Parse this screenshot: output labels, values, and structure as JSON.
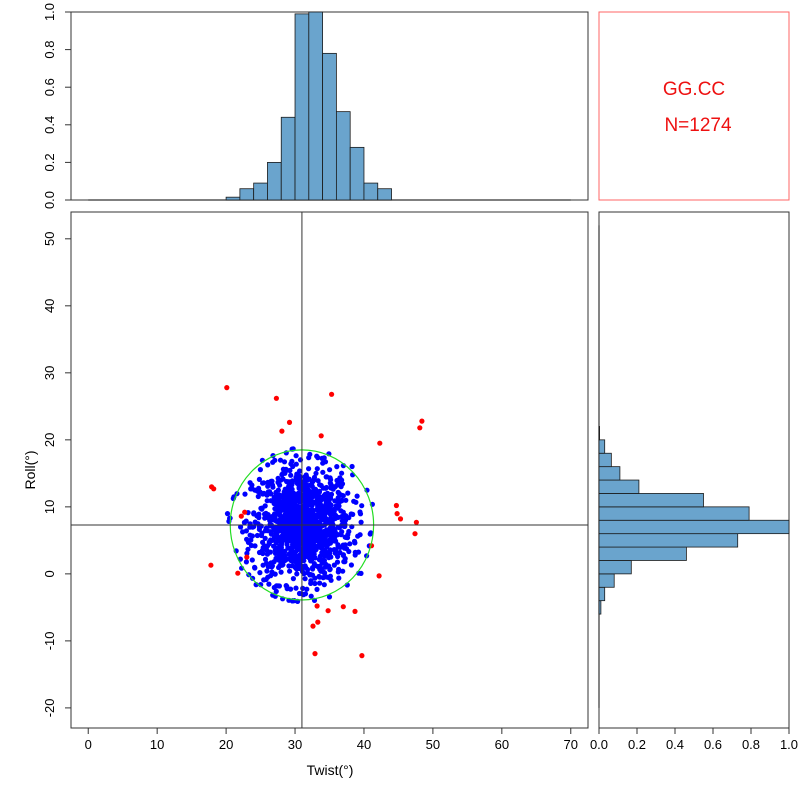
{
  "colors": {
    "bar_fill": "#6aa4cd",
    "bar_stroke": "#1a1a1a",
    "inlier_points": "#0000ff",
    "outlier_points": "#ff0000",
    "ellipse": "#22dd22",
    "info_box_border": "#ff6666",
    "info_text": "#ee1111",
    "mean_lines": "#333333"
  },
  "info_box": {
    "title": "GG.CC",
    "count_label": "N=1274"
  },
  "chart_data": [
    {
      "id": "scatter",
      "type": "scatter",
      "xlabel": "Twist(°)",
      "ylabel": "Roll(°)",
      "xlim": [
        -2.5,
        72.5
      ],
      "ylim": [
        -23,
        54
      ],
      "xticks": [
        0,
        10,
        20,
        30,
        40,
        50,
        60,
        70
      ],
      "yticks": [
        -20,
        -10,
        0,
        10,
        20,
        30,
        40,
        50
      ],
      "mean_x": 31,
      "mean_y": 7.3,
      "ellipse": {
        "cx": 31,
        "cy": 7.3,
        "rx": 10.4,
        "ry": 11.2
      },
      "series": [
        {
          "name": "inliers",
          "color_key": "inlier_points",
          "n": 1274,
          "center": [
            31,
            7.3
          ],
          "sd": [
            3.6,
            4.3
          ]
        },
        {
          "name": "outliers",
          "color_key": "outlier_points",
          "points": [
            [
              20.1,
              27.8
            ],
            [
              27.3,
              26.2
            ],
            [
              35.3,
              26.8
            ],
            [
              29.2,
              22.6
            ],
            [
              28.1,
              21.3
            ],
            [
              48.4,
              22.8
            ],
            [
              48.1,
              21.8
            ],
            [
              42.3,
              19.5
            ],
            [
              33.8,
              20.6
            ],
            [
              17.9,
              13.0
            ],
            [
              18.2,
              12.7
            ],
            [
              44.7,
              10.2
            ],
            [
              44.8,
              9.0
            ],
            [
              45.3,
              8.2
            ],
            [
              47.6,
              7.7
            ],
            [
              47.4,
              6.0
            ],
            [
              41.1,
              4.2
            ],
            [
              22.7,
              9.2
            ],
            [
              22.2,
              8.6
            ],
            [
              23.0,
              2.5
            ],
            [
              17.8,
              1.3
            ],
            [
              21.7,
              0.1
            ],
            [
              42.2,
              -0.3
            ],
            [
              33.2,
              -4.8
            ],
            [
              37.0,
              -4.9
            ],
            [
              38.7,
              -5.6
            ],
            [
              34.8,
              -5.5
            ],
            [
              32.6,
              -7.8
            ],
            [
              33.3,
              -7.2
            ],
            [
              39.7,
              -12.2
            ],
            [
              32.9,
              -11.9
            ]
          ]
        }
      ]
    },
    {
      "id": "twist_histogram",
      "type": "bar",
      "xlim": [
        -2.5,
        72.5
      ],
      "ylim": [
        0,
        1
      ],
      "yticks": [
        0,
        0.2,
        0.4,
        0.6,
        0.8,
        1.0
      ],
      "bin_width": 2,
      "bin_starts": [
        20,
        22,
        24,
        26,
        28,
        30,
        32,
        34,
        36,
        38,
        40,
        42
      ],
      "values": [
        0.015,
        0.06,
        0.09,
        0.2,
        0.44,
        0.99,
        1.0,
        0.78,
        0.47,
        0.28,
        0.09,
        0.06
      ],
      "baseline_ticks": [
        0,
        70
      ]
    },
    {
      "id": "roll_histogram",
      "type": "bar",
      "orientation": "horizontal",
      "ylim": [
        -23,
        54
      ],
      "xlim": [
        0,
        1
      ],
      "xticks": [
        0,
        0.2,
        0.4,
        0.6,
        0.8,
        1.0
      ],
      "tick_labels": [
        "0.0",
        "0.2",
        "0.4",
        "0.6",
        "0.8",
        "1.0"
      ],
      "bin_width": 2,
      "bin_starts": [
        -6,
        -4,
        -2,
        0,
        2,
        4,
        6,
        8,
        10,
        12,
        14,
        16,
        18,
        20
      ],
      "values": [
        0.01,
        0.03,
        0.08,
        0.17,
        0.46,
        0.73,
        1.0,
        0.79,
        0.55,
        0.21,
        0.11,
        0.065,
        0.03,
        0.003
      ],
      "baseline_ticks": [
        -20,
        52
      ]
    }
  ]
}
